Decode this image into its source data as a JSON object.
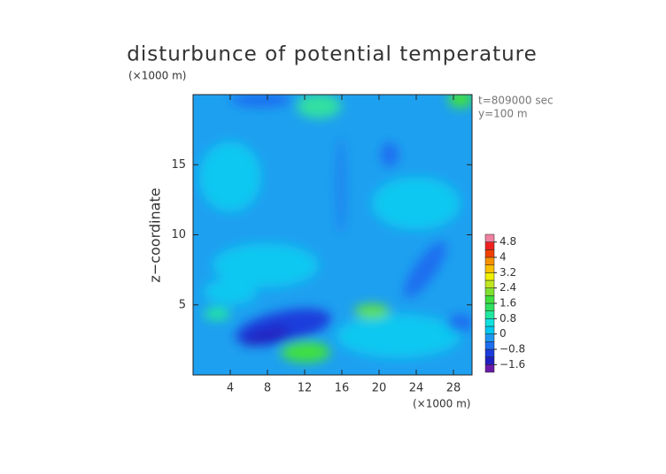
{
  "chart_data": {
    "type": "contour",
    "title": "disturbunce of potential temperature",
    "x_unit_label": "(×1000 m)",
    "y_unit_label": "(×1000 m)",
    "y_label": "z−coordinate",
    "annotations": [
      "t=809000 sec",
      "y=100 m"
    ],
    "xlim": [
      0,
      30
    ],
    "xticks": [
      4,
      8,
      12,
      16,
      20,
      24,
      28
    ],
    "ylim": [
      0,
      20
    ],
    "yticks": [
      5,
      10,
      15
    ],
    "colorbar": {
      "clim": [
        -2.0,
        5.2
      ],
      "ticks": [
        {
          "value": -1.6,
          "label": "−1.6"
        },
        {
          "value": -0.8,
          "label": "−0.8"
        },
        0,
        0.8,
        1.6,
        2.4,
        3.2,
        4,
        4.8
      ],
      "colors": [
        "#6a1aa8",
        "#2020c0",
        "#1a3cdc",
        "#1e6ef0",
        "#1e96f0",
        "#00c8f0",
        "#10e0e0",
        "#20e8a0",
        "#30e060",
        "#40e040",
        "#80e030",
        "#c0e820",
        "#f0f000",
        "#f8c000",
        "#f89000",
        "#f04000",
        "#f02020",
        "#f080a0"
      ]
    }
  }
}
